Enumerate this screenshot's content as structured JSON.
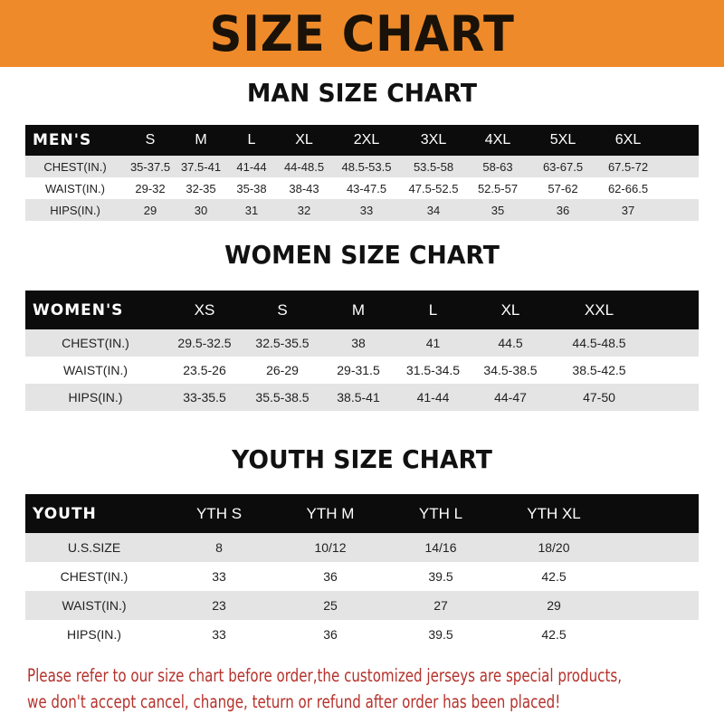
{
  "banner_title": "SIZE CHART",
  "sections": {
    "men": {
      "title": "MAN SIZE CHART",
      "header": [
        "MEN'S",
        "S",
        "M",
        "L",
        "XL",
        "2XL",
        "3XL",
        "4XL",
        "5XL",
        "6XL"
      ],
      "rows": [
        [
          "CHEST(IN.)",
          "35-37.5",
          "37.5-41",
          "41-44",
          "44-48.5",
          "48.5-53.5",
          "53.5-58",
          "58-63",
          "63-67.5",
          "67.5-72"
        ],
        [
          "WAIST(IN.)",
          "29-32",
          "32-35",
          "35-38",
          "38-43",
          "43-47.5",
          "47.5-52.5",
          "52.5-57",
          "57-62",
          "62-66.5"
        ],
        [
          "HIPS(IN.)",
          "29",
          "30",
          "31",
          "32",
          "33",
          "34",
          "35",
          "36",
          "37"
        ]
      ]
    },
    "women": {
      "title": "WOMEN SIZE CHART",
      "header": [
        "WOMEN'S",
        "XS",
        "S",
        "M",
        "L",
        "XL",
        "XXL"
      ],
      "rows": [
        [
          "CHEST(IN.)",
          "29.5-32.5",
          "32.5-35.5",
          "38",
          "41",
          "44.5",
          "44.5-48.5"
        ],
        [
          "WAIST(IN.)",
          "23.5-26",
          "26-29",
          "29-31.5",
          "31.5-34.5",
          "34.5-38.5",
          "38.5-42.5"
        ],
        [
          "HIPS(IN.)",
          "33-35.5",
          "35.5-38.5",
          "38.5-41",
          "41-44",
          "44-47",
          "47-50"
        ]
      ]
    },
    "youth": {
      "title": "YOUTH SIZE CHART",
      "header": [
        "YOUTH",
        "YTH S",
        "YTH M",
        "YTH L",
        "YTH XL"
      ],
      "rows": [
        [
          "U.S.SIZE",
          "8",
          "10/12",
          "14/16",
          "18/20"
        ],
        [
          "CHEST(IN.)",
          "33",
          "36",
          "39.5",
          "42.5"
        ],
        [
          "WAIST(IN.)",
          "23",
          "25",
          "27",
          "29"
        ],
        [
          "HIPS(IN.)",
          "33",
          "36",
          "39.5",
          "42.5"
        ]
      ]
    }
  },
  "notice": [
    "Please refer to our size chart before order,the customized jerseys are special products,",
    "we don't accept cancel, change, teturn or refund after order has been placed!"
  ],
  "colors": {
    "banner": "#ef8a2a",
    "header_row": "#0c0c0c",
    "stripe": "#e4e4e4",
    "notice": "#b5312b"
  }
}
